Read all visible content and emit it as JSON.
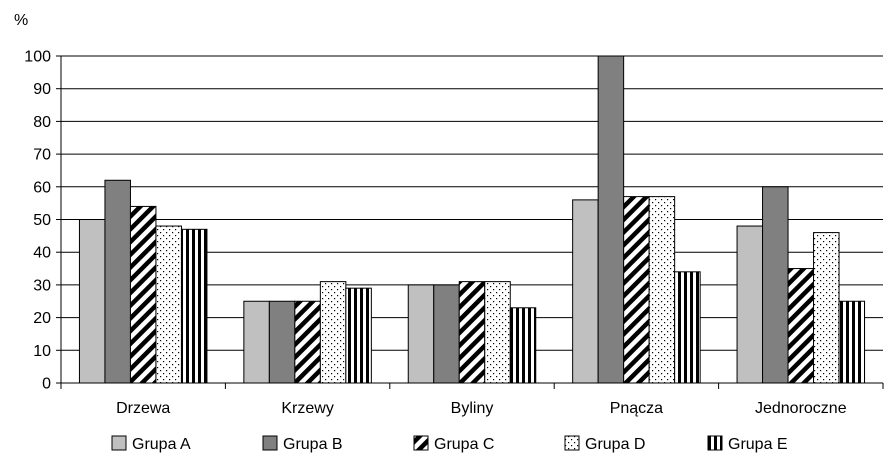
{
  "chart_data": {
    "type": "bar",
    "ylabel": "%",
    "ylim": [
      0,
      100
    ],
    "yticks": [
      0,
      10,
      20,
      30,
      40,
      50,
      60,
      70,
      80,
      90,
      100
    ],
    "grid": true,
    "legend_position": "bottom",
    "categories": [
      "Drzewa",
      "Krzewy",
      "Byliny",
      "Pnącza",
      "Jednoroczne"
    ],
    "series": [
      {
        "name": "Grupa A",
        "pattern": "solid-light",
        "color": "#c0c0c0",
        "values": [
          50,
          25,
          30,
          56,
          48
        ]
      },
      {
        "name": "Grupa B",
        "pattern": "solid-dark",
        "color": "#808080",
        "values": [
          62,
          25,
          30,
          100,
          60
        ]
      },
      {
        "name": "Grupa C",
        "pattern": "diagonal-stripes",
        "color": "#000000",
        "values": [
          54,
          25,
          31,
          57,
          35
        ]
      },
      {
        "name": "Grupa D",
        "pattern": "dots",
        "color": "#000000",
        "values": [
          48,
          31,
          31,
          57,
          46
        ]
      },
      {
        "name": "Grupa E",
        "pattern": "vertical-stripes",
        "color": "#000000",
        "values": [
          47,
          29,
          23,
          34,
          25
        ]
      }
    ]
  }
}
